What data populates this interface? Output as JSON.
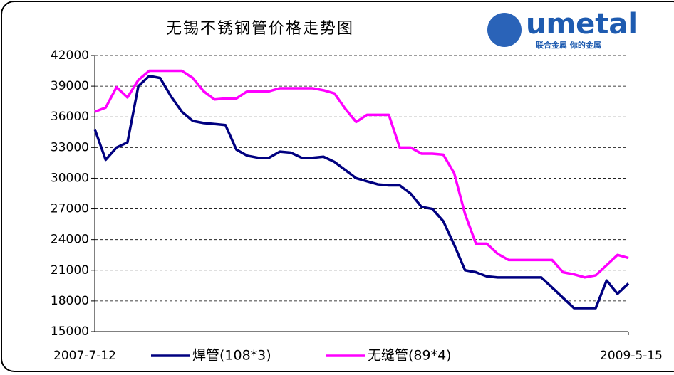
{
  "chart_data": {
    "type": "line",
    "title": "无锡不锈钢管价格走势图",
    "logo": {
      "name": "umetal",
      "tagline": "联合金属 你的金属"
    },
    "categories": [
      "2007-7-12",
      null,
      null,
      null,
      null,
      null,
      null,
      null,
      null,
      null,
      null,
      null,
      null,
      null,
      null,
      null,
      null,
      null,
      null,
      null,
      null,
      null,
      null,
      null,
      null,
      null,
      null,
      null,
      null,
      null,
      null,
      null,
      null,
      null,
      null,
      null,
      null,
      null,
      null,
      null,
      null,
      null,
      null,
      null,
      null,
      null,
      null,
      null,
      null,
      "2009-5-15"
    ],
    "series": [
      {
        "name": "焊管(108*3)",
        "color": "#000080",
        "values": [
          34800,
          31800,
          33000,
          33500,
          39000,
          40000,
          39800,
          38000,
          36500,
          35600,
          35400,
          35300,
          35200,
          32800,
          32200,
          32000,
          32000,
          32600,
          32500,
          32000,
          32000,
          32100,
          31600,
          30800,
          30000,
          29700,
          29400,
          29300,
          29300,
          28500,
          27200,
          27000,
          25800,
          23500,
          21000,
          20800,
          20400,
          20300,
          20300,
          20300,
          20300,
          20300,
          19300,
          18300,
          17300,
          17300,
          17300,
          20000,
          18700,
          19700
        ]
      },
      {
        "name": "无缝管(89*4)",
        "color": "#ff00ff",
        "values": [
          36500,
          36900,
          38900,
          37900,
          39600,
          40500,
          40500,
          40500,
          40500,
          39800,
          38500,
          37700,
          37800,
          37800,
          38500,
          38500,
          38500,
          38800,
          38800,
          38800,
          38800,
          38600,
          38300,
          36800,
          35500,
          36200,
          36200,
          36200,
          33000,
          33000,
          32400,
          32400,
          32300,
          30500,
          26500,
          23600,
          23600,
          22600,
          22000,
          22000,
          22000,
          22000,
          22000,
          20800,
          20600,
          20300,
          20500,
          21500,
          22500,
          22200
        ]
      }
    ],
    "ylim": [
      15000,
      42000
    ],
    "yticks": [
      15000,
      18000,
      21000,
      24000,
      27000,
      30000,
      33000,
      36000,
      39000,
      42000
    ],
    "grid": true
  }
}
